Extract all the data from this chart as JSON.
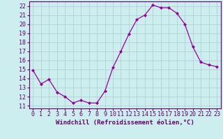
{
  "x": [
    0,
    1,
    2,
    3,
    4,
    5,
    6,
    7,
    8,
    9,
    10,
    11,
    12,
    13,
    14,
    15,
    16,
    17,
    18,
    19,
    20,
    21,
    22,
    23
  ],
  "y": [
    14.9,
    13.4,
    13.9,
    12.5,
    12.0,
    11.3,
    11.6,
    11.3,
    11.3,
    12.6,
    15.2,
    17.0,
    18.9,
    20.5,
    21.0,
    22.1,
    21.8,
    21.8,
    21.2,
    20.0,
    17.5,
    15.8,
    15.5,
    15.3
  ],
  "line_color": "#990099",
  "marker": "D",
  "markersize": 2,
  "bg_color": "#cceeee",
  "grid_color": "#aacccc",
  "xlabel": "Windchill (Refroidissement éolien,°C)",
  "ylabel_ticks": [
    11,
    12,
    13,
    14,
    15,
    16,
    17,
    18,
    19,
    20,
    21,
    22
  ],
  "ylim": [
    10.7,
    22.5
  ],
  "xlim": [
    -0.5,
    23.5
  ],
  "tick_fontsize": 6.0,
  "xlabel_fontsize": 6.5,
  "text_color": "#660066"
}
